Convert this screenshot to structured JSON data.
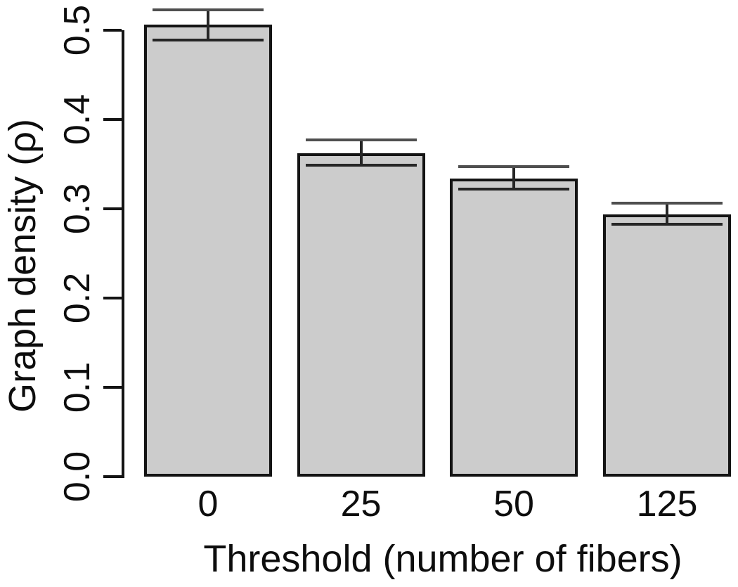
{
  "chart_data": {
    "type": "bar",
    "title": "",
    "xlabel": "Threshold (number of fibers)",
    "ylabel": "Graph density (ρ)",
    "categories": [
      "0",
      "25",
      "50",
      "125"
    ],
    "values": [
      0.506,
      0.362,
      0.334,
      0.294
    ],
    "error_upper": [
      0.523,
      0.377,
      0.347,
      0.306
    ],
    "error_lower": [
      0.489,
      0.349,
      0.322,
      0.283
    ],
    "ylim": [
      0.0,
      0.5
    ],
    "yticks": {
      "values": [
        0.0,
        0.1,
        0.2,
        0.3,
        0.4,
        0.5
      ],
      "labels": [
        "0.0",
        "0.1",
        "0.2",
        "0.3",
        "0.4",
        "0.5"
      ]
    },
    "grid": false,
    "legend": null,
    "colors": {
      "bar_fill": "#cccccc",
      "bar_border": "#141414",
      "axis": "#141414",
      "error_bar": "#262626",
      "background": "#ffffff",
      "text": "#0d0d0d"
    }
  }
}
